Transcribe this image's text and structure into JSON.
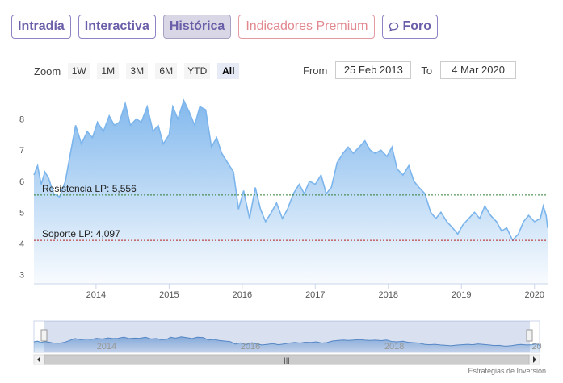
{
  "tabs": [
    {
      "label": "Intradía",
      "style": "normal"
    },
    {
      "label": "Interactiva",
      "style": "normal"
    },
    {
      "label": "Histórica",
      "style": "active"
    },
    {
      "label": "Indicadores Premium",
      "style": "premium"
    },
    {
      "label": "Foro",
      "style": "normal",
      "icon": "chat-bubble-icon"
    }
  ],
  "zoom": {
    "label": "Zoom",
    "buttons": [
      "1W",
      "1M",
      "3M",
      "6M",
      "YTD",
      "All"
    ],
    "selected": "All"
  },
  "range": {
    "from_label": "From",
    "from_value": "25 Feb 2013",
    "to_label": "To",
    "to_value": "4 Mar 2020"
  },
  "chart_data": {
    "type": "area",
    "x_ticks": [
      "2014",
      "2015",
      "2016",
      "2017",
      "2018",
      "2019",
      "2020"
    ],
    "y_ticks": [
      3,
      4,
      5,
      6,
      7,
      8
    ],
    "ylim": [
      2.7,
      8.9
    ],
    "xlim": [
      2013.15,
      2020.18
    ],
    "series": [
      {
        "x": [
          2013.15,
          2013.2,
          2013.25,
          2013.3,
          2013.35,
          2013.42,
          2013.5,
          2013.58,
          2013.65,
          2013.72,
          2013.8,
          2013.88,
          2013.95,
          2014.02,
          2014.1,
          2014.18,
          2014.25,
          2014.32,
          2014.4,
          2014.47,
          2014.55,
          2014.62,
          2014.7,
          2014.78,
          2014.85,
          2014.92,
          2015.0,
          2015.05,
          2015.12,
          2015.2,
          2015.28,
          2015.35,
          2015.42,
          2015.5,
          2015.58,
          2015.65,
          2015.72,
          2015.8,
          2015.88,
          2015.95,
          2016.02,
          2016.1,
          2016.18,
          2016.25,
          2016.32,
          2016.4,
          2016.47,
          2016.55,
          2016.62,
          2016.7,
          2016.78,
          2016.85,
          2016.92,
          2017.0,
          2017.08,
          2017.15,
          2017.22,
          2017.3,
          2017.38,
          2017.45,
          2017.52,
          2017.6,
          2017.68,
          2017.75,
          2017.82,
          2017.9,
          2017.98,
          2018.05,
          2018.12,
          2018.2,
          2018.28,
          2018.35,
          2018.42,
          2018.5,
          2018.58,
          2018.65,
          2018.72,
          2018.8,
          2018.88,
          2018.95,
          2019.02,
          2019.1,
          2019.18,
          2019.25,
          2019.32,
          2019.4,
          2019.48,
          2019.55,
          2019.62,
          2019.7,
          2019.78,
          2019.85,
          2019.92,
          2020.0,
          2020.08,
          2020.12,
          2020.16,
          2020.18
        ],
        "y": [
          6.2,
          6.5,
          5.9,
          6.3,
          6.1,
          5.6,
          5.5,
          6.0,
          6.9,
          7.8,
          7.2,
          7.6,
          7.4,
          7.9,
          7.6,
          8.1,
          7.8,
          7.9,
          8.5,
          7.8,
          8.0,
          7.9,
          8.4,
          7.6,
          7.8,
          7.2,
          7.5,
          8.4,
          8.0,
          8.6,
          8.2,
          7.8,
          8.4,
          8.3,
          7.1,
          7.4,
          6.9,
          6.6,
          6.3,
          5.1,
          5.7,
          4.8,
          5.8,
          5.1,
          4.7,
          5.0,
          5.3,
          4.8,
          5.1,
          5.6,
          5.9,
          5.6,
          6.0,
          5.9,
          6.2,
          5.6,
          5.8,
          6.6,
          6.9,
          7.1,
          6.9,
          7.1,
          7.3,
          7.0,
          6.9,
          7.0,
          6.8,
          7.1,
          6.4,
          6.2,
          6.5,
          6.0,
          5.8,
          5.6,
          5.0,
          4.8,
          5.0,
          4.7,
          4.5,
          4.3,
          4.6,
          4.8,
          5.0,
          4.8,
          5.2,
          4.9,
          4.7,
          4.4,
          4.5,
          4.1,
          4.3,
          4.7,
          4.9,
          4.7,
          4.8,
          5.2,
          4.9,
          4.5
        ]
      }
    ],
    "annotations": [
      {
        "label": "Resistencia LP: 5,556",
        "y": 5.556,
        "color": "#2e7d32"
      },
      {
        "label": "Soporte LP: 4,097",
        "y": 4.097,
        "color": "#b71c1c"
      }
    ],
    "navigator_ticks": [
      "2014",
      "2016",
      "2018",
      "20"
    ],
    "grid": false,
    "area_color": "#7cb5ec"
  },
  "credit": "Estrategias de Inversión"
}
